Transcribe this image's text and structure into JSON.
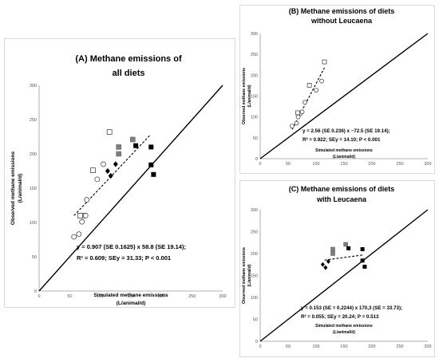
{
  "chart_data": [
    {
      "id": "A",
      "type": "scatter",
      "title": [
        "(A) Methane emissions of",
        "all diets"
      ],
      "xlabel": [
        "Simulated methane emissions",
        "(L/animal/d)"
      ],
      "ylabel": [
        "Observed methane emissions",
        "(L/animal/d)"
      ],
      "xlim": [
        0,
        300
      ],
      "ylim": [
        0,
        300
      ],
      "xticks": [
        "0",
        "50",
        "100",
        "150",
        "200",
        "250",
        "300"
      ],
      "yticks": [
        "0",
        "50",
        "100",
        "150",
        "200",
        "250",
        "300"
      ],
      "identity_line": true,
      "regression": {
        "x": [
          57,
          182
        ],
        "y": [
          110,
          228
        ]
      },
      "equation": [
        "y = 0.907 (SE 0.1625) x 58.8 (SE 19.14);",
        "R² = 0.609; SEy = 31.33; P < 0.001"
      ],
      "series": [
        {
          "marker": "circle-open",
          "points": [
            [
              57,
              79
            ],
            [
              65,
              83
            ],
            [
              70,
              101
            ],
            [
              73,
              110
            ],
            [
              76,
              110
            ],
            [
              78,
              133
            ],
            [
              95,
              163
            ],
            [
              105,
              185
            ]
          ]
        },
        {
          "marker": "square-open",
          "points": [
            [
              67,
              110
            ],
            [
              88,
              176
            ],
            [
              115,
              232
            ]
          ]
        },
        {
          "marker": "square-gray",
          "points": [
            [
              130,
              200
            ],
            [
              130,
              210
            ],
            [
              153,
              221
            ]
          ]
        },
        {
          "marker": "diamond-black",
          "points": [
            [
              112,
              175
            ],
            [
              117,
              168
            ],
            [
              125,
              185
            ]
          ]
        },
        {
          "marker": "square-black",
          "points": [
            [
              158,
              212
            ],
            [
              183,
              210
            ],
            [
              183,
              184
            ],
            [
              187,
              170
            ]
          ]
        }
      ]
    },
    {
      "id": "B",
      "type": "scatter",
      "title": [
        "(B) Methane emissions of diets",
        "without Leucaena"
      ],
      "xlabel": [
        "Simulated methane emissions",
        "(L/animal/d)"
      ],
      "ylabel": [
        "Observed methane emissions",
        "(L/animal/d)"
      ],
      "xlim": [
        0,
        300
      ],
      "ylim": [
        0,
        300
      ],
      "xticks": [
        "0",
        "50",
        "100",
        "150",
        "200",
        "250",
        "300"
      ],
      "yticks": [
        "0",
        "50",
        "100",
        "150",
        "200",
        "250",
        "300"
      ],
      "identity_line": true,
      "regression": {
        "x": [
          57,
          115
        ],
        "y": [
          70,
          218
        ]
      },
      "equation": [
        "y = 2.56 (SE 0.236) x −72.5 (SE 19.14);",
        "R² = 0.922; SEy = 14.10; P < 0.001"
      ],
      "series": [
        {
          "marker": "circle-open",
          "points": [
            [
              57,
              78
            ],
            [
              65,
              85
            ],
            [
              68,
              100
            ],
            [
              72,
              108
            ],
            [
              75,
              112
            ],
            [
              80,
              135
            ],
            [
              100,
              164
            ],
            [
              110,
              186
            ]
          ]
        },
        {
          "marker": "square-open",
          "points": [
            [
              67,
              110
            ],
            [
              88,
              176
            ],
            [
              115,
              232
            ]
          ]
        }
      ]
    },
    {
      "id": "C",
      "type": "scatter",
      "title": [
        "(C) Methane emissions of diets",
        "with Leucaena"
      ],
      "xlabel": [
        "Simulated methane emissions",
        "(L/animal/d)"
      ],
      "ylabel": [
        "Observed methane emissions",
        "(L/animal/d)"
      ],
      "xlim": [
        0,
        300
      ],
      "ylim": [
        0,
        300
      ],
      "xticks": [
        "0",
        "50",
        "100",
        "150",
        "200",
        "250",
        "300"
      ],
      "yticks": [
        "0",
        "50",
        "100",
        "150",
        "200",
        "250",
        "300"
      ],
      "identity_line": true,
      "regression": {
        "x": [
          115,
          185
        ],
        "y": [
          185,
          197
        ]
      },
      "equation": [
        "y = 0.153 (SE = 0.2244) x 170,3 (SE = 33.73);",
        "R² = 0.055; SEy = 20.24; P = 0.513"
      ],
      "series": [
        {
          "marker": "square-gray",
          "points": [
            [
              130,
              200
            ],
            [
              130,
              210
            ],
            [
              153,
              221
            ]
          ]
        },
        {
          "marker": "diamond-black",
          "points": [
            [
              112,
              175
            ],
            [
              117,
              168
            ],
            [
              122,
              182
            ]
          ]
        },
        {
          "marker": "square-black",
          "points": [
            [
              158,
              212
            ],
            [
              183,
              210
            ],
            [
              183,
              184
            ],
            [
              187,
              170
            ]
          ]
        }
      ]
    }
  ]
}
